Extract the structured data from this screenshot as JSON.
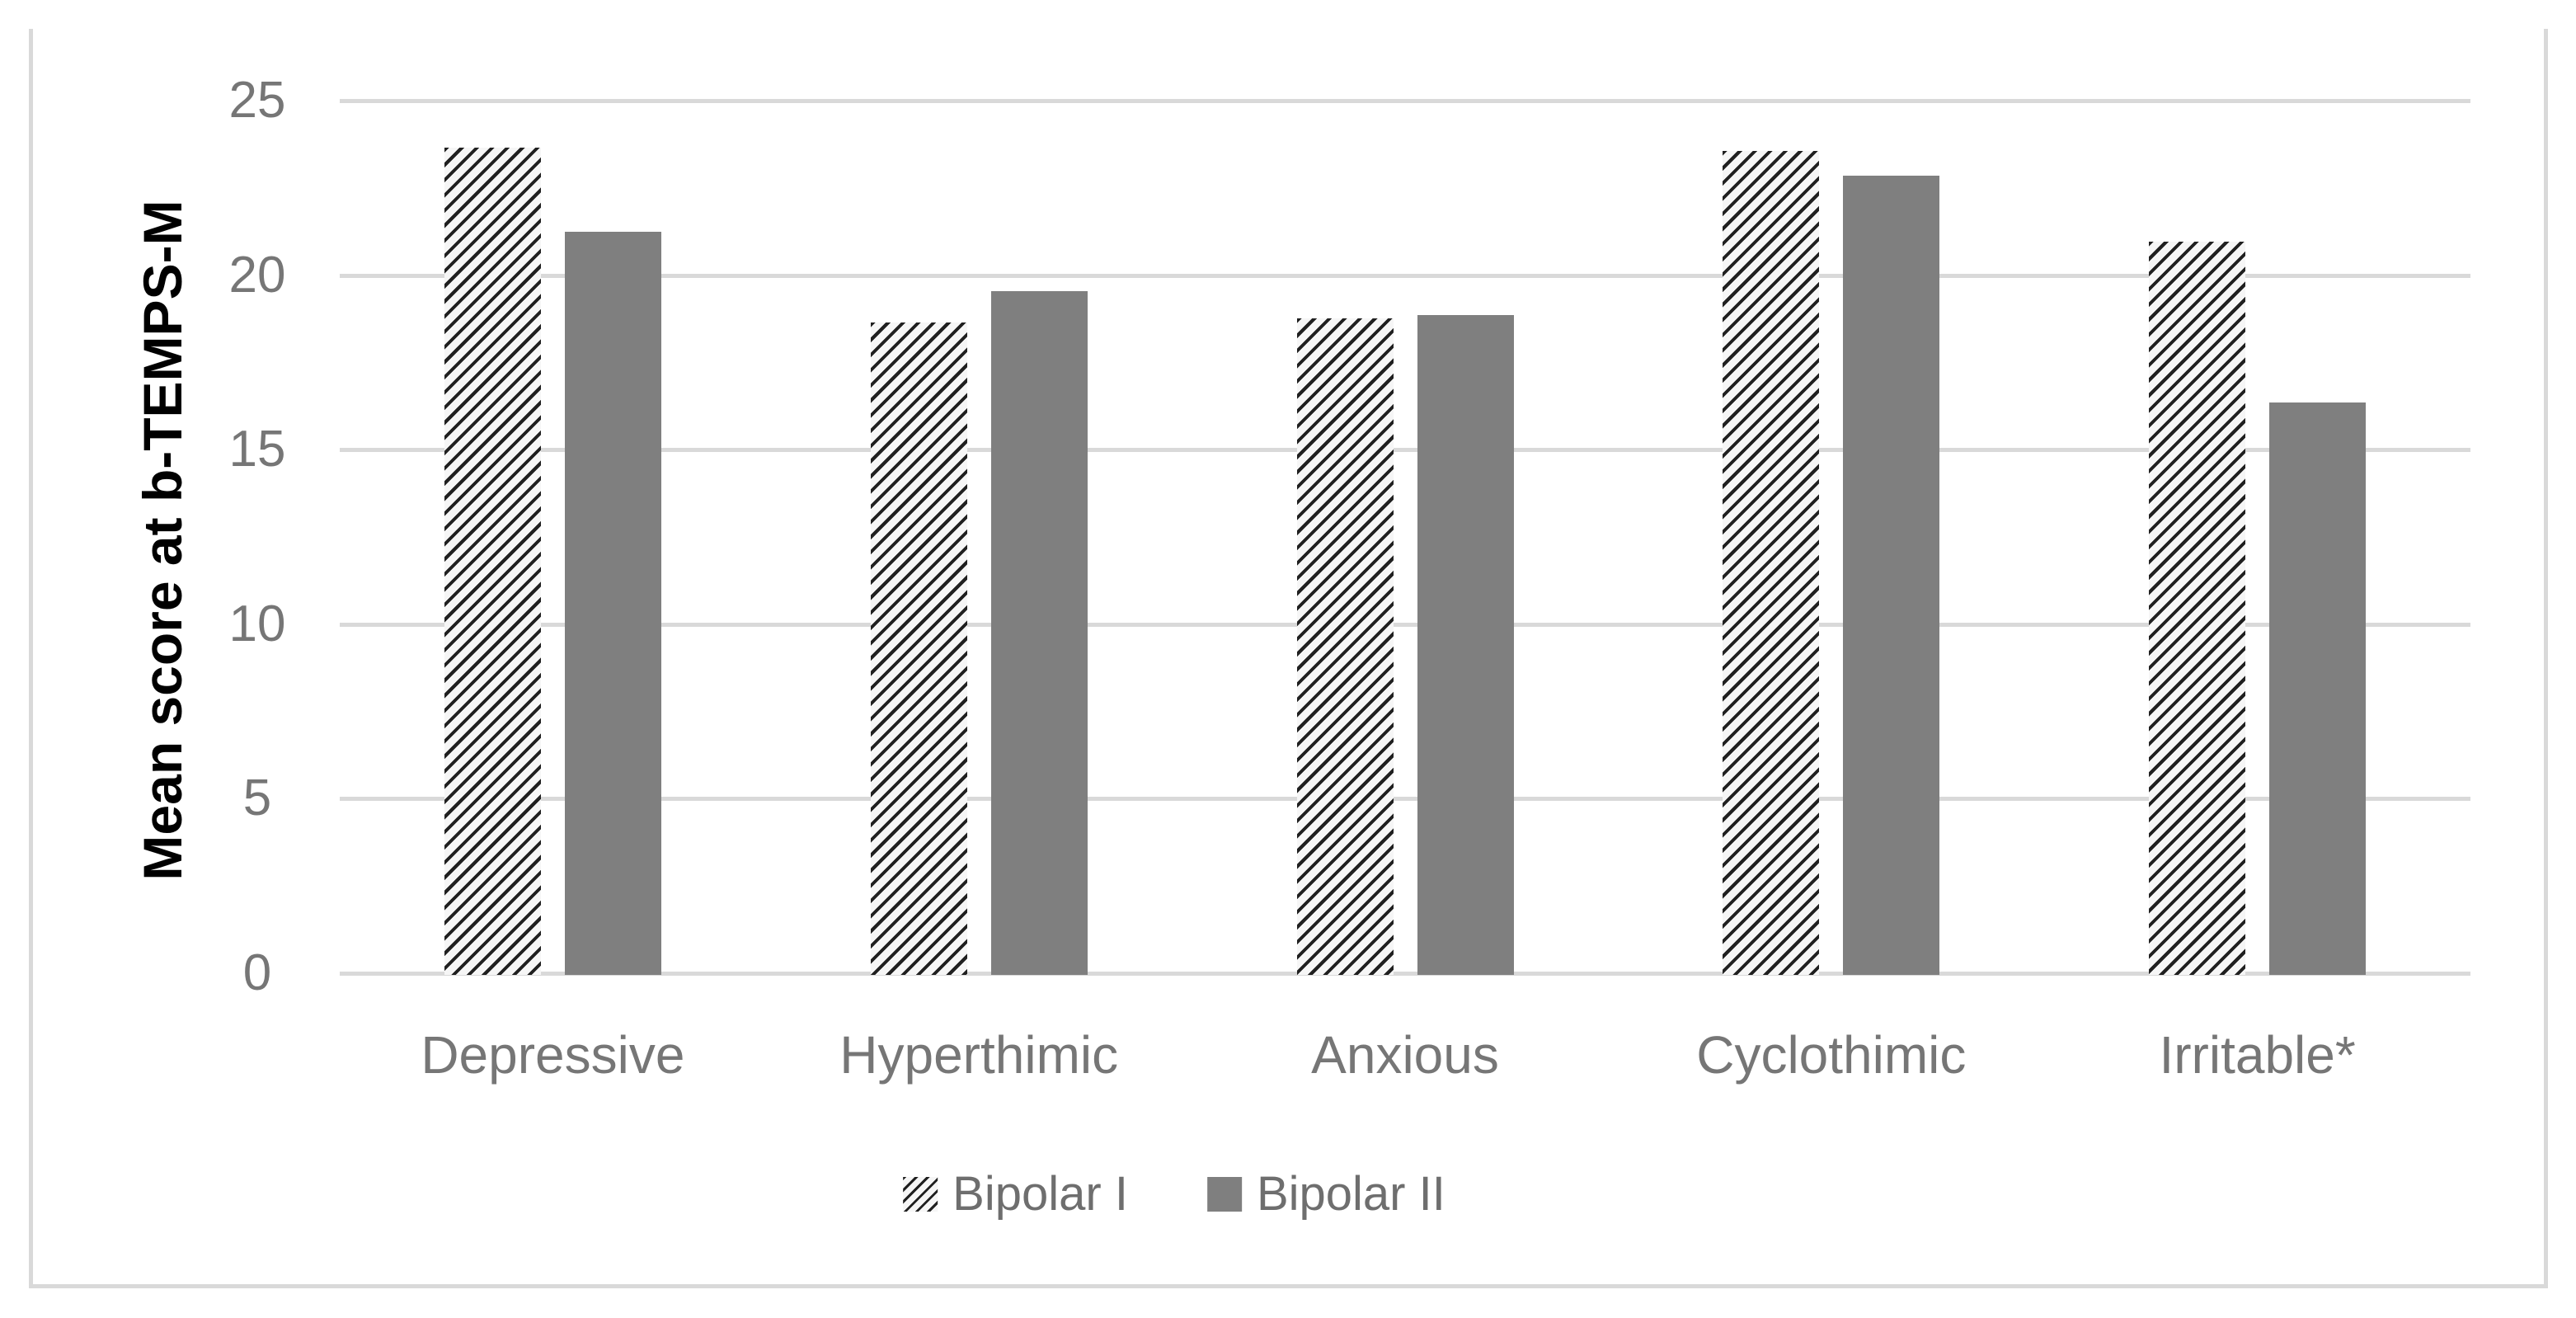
{
  "chart_data": {
    "type": "bar",
    "title": "",
    "xlabel": "",
    "ylabel": "Mean score at b-TEMPS-M",
    "categories": [
      "Depressive",
      "Hyperthimic",
      "Anxious",
      "Cyclothimic",
      "Irritable*"
    ],
    "series": [
      {
        "name": "Bipolar I",
        "style": "hatched",
        "values": [
          23.7,
          18.7,
          18.8,
          23.6,
          21.0
        ]
      },
      {
        "name": "Bipolar II",
        "style": "solid",
        "values": [
          21.3,
          19.6,
          18.9,
          22.9,
          16.4
        ]
      }
    ],
    "ylim": [
      0,
      25
    ],
    "yticks": [
      0,
      5,
      10,
      15,
      20,
      25
    ],
    "grid": true,
    "legend_position": "bottom-center",
    "colors": {
      "solid_bar": "#7f7f7f",
      "hatch_stripe": "#202020",
      "hatch_background": "#f6f6f6",
      "gridline": "#d9d9d9",
      "tick_label_text": "#767676",
      "category_label_text": "#767676",
      "legend_text": "#6e6e6e",
      "axis_title_text": "#000000",
      "frame_border": "#d9d9d9"
    }
  },
  "legend": {
    "items": [
      {
        "label": "Bipolar I",
        "swatch": "hatched"
      },
      {
        "label": "Bipolar II",
        "swatch": "solid"
      }
    ]
  }
}
